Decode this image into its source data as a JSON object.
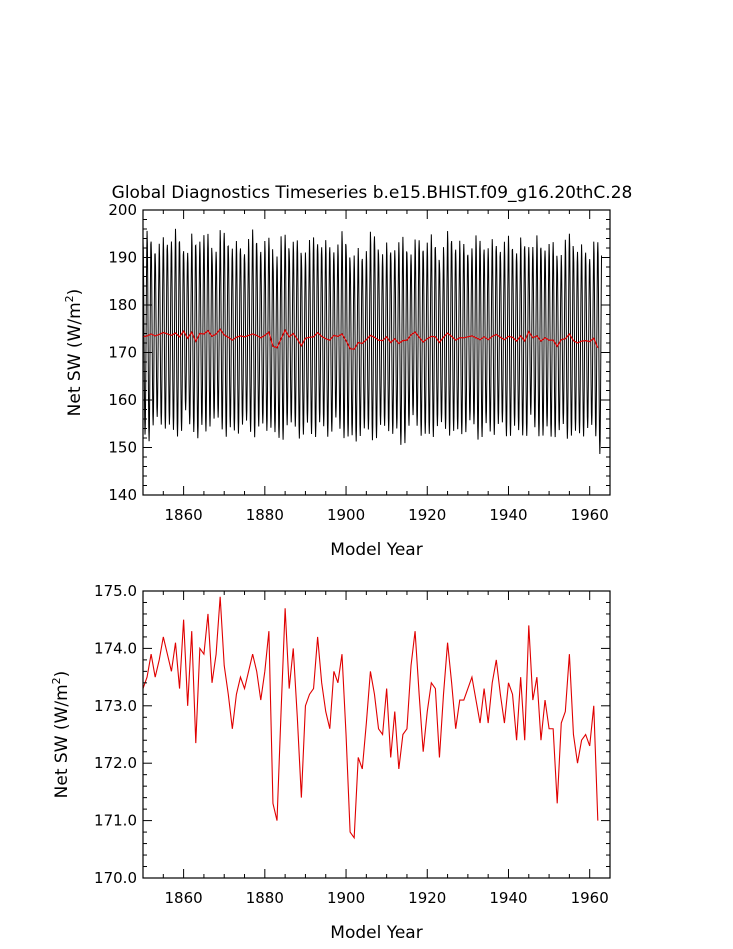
{
  "figure": {
    "title": "Global Diagnostics Timeseries b.e15.BHIST.f09_g16.20thC.28"
  },
  "chart_data": [
    {
      "type": "line",
      "xlabel": "Model Year",
      "ylabel_main": "Net SW (W/m",
      "ylabel_sup": "2",
      "ylabel_close": ")",
      "xlim": [
        1850,
        1965
      ],
      "ylim": [
        140,
        200
      ],
      "x_ticks": [
        1860,
        1880,
        1900,
        1920,
        1940,
        1960
      ],
      "x_tick_labels": [
        "1860",
        "1880",
        "1900",
        "1920",
        "1940",
        "1960"
      ],
      "y_ticks": [
        140,
        150,
        160,
        170,
        180,
        190,
        200
      ],
      "y_tick_labels": [
        "140",
        "150",
        "160",
        "170",
        "180",
        "190",
        "200"
      ],
      "grid": false,
      "series": [
        {
          "style": "monthly seasonal cycle",
          "color": "#000000",
          "x_start": 1850,
          "x_end": 1964,
          "points_per_year": 12,
          "mean": 172.5,
          "annual_max_approx": 192,
          "annual_min_approx": 153
        },
        {
          "style": "annual mean",
          "color": "#e00000",
          "x_start": 1850,
          "values": "see panel 2"
        }
      ]
    },
    {
      "type": "line",
      "xlabel": "Model Year",
      "ylabel_main": "Net SW (W/m",
      "ylabel_sup": "2",
      "ylabel_close": ")",
      "xlim": [
        1850,
        1965
      ],
      "ylim": [
        170,
        175
      ],
      "x_ticks": [
        1860,
        1880,
        1900,
        1920,
        1940,
        1960
      ],
      "x_tick_labels": [
        "1860",
        "1880",
        "1900",
        "1920",
        "1940",
        "1960"
      ],
      "y_ticks": [
        170,
        171,
        172,
        173,
        174,
        175
      ],
      "y_tick_labels": [
        "170.0",
        "171.0",
        "172.0",
        "173.0",
        "174.0",
        "175.0"
      ],
      "grid": false,
      "series": [
        {
          "color": "#e00000",
          "x_start": 1850,
          "x_step": 1,
          "values": [
            173.3,
            173.5,
            173.9,
            173.5,
            173.8,
            174.2,
            173.9,
            173.6,
            174.1,
            173.3,
            174.5,
            173.0,
            174.3,
            172.35,
            174.0,
            173.9,
            174.6,
            173.4,
            173.9,
            174.9,
            173.7,
            173.2,
            172.6,
            173.2,
            173.5,
            173.3,
            173.6,
            173.9,
            173.6,
            173.1,
            173.6,
            174.3,
            171.3,
            171.0,
            172.9,
            174.7,
            173.3,
            174.0,
            172.8,
            171.4,
            173.0,
            173.2,
            173.3,
            174.2,
            173.4,
            172.9,
            172.6,
            173.6,
            173.4,
            173.9,
            172.5,
            170.8,
            170.7,
            172.1,
            171.9,
            172.7,
            173.6,
            173.2,
            172.6,
            172.5,
            173.3,
            172.1,
            172.9,
            171.9,
            172.5,
            172.6,
            173.7,
            174.3,
            173.2,
            172.2,
            172.9,
            173.4,
            173.3,
            172.1,
            173.2,
            174.1,
            173.4,
            172.6,
            173.1,
            173.1,
            173.3,
            173.5,
            173.1,
            172.7,
            173.3,
            172.7,
            173.4,
            173.8,
            173.2,
            172.7,
            173.4,
            173.2,
            172.4,
            173.5,
            172.4,
            174.4,
            173.1,
            173.5,
            172.4,
            173.1,
            172.6,
            172.6,
            171.3,
            172.7,
            172.9,
            173.9,
            172.5,
            172.0,
            172.4,
            172.5,
            172.3,
            173.0,
            171.0
          ]
        }
      ]
    }
  ]
}
